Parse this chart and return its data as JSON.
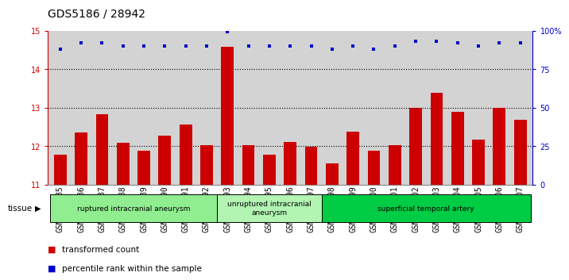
{
  "title": "GDS5186 / 28942",
  "samples": [
    "GSM1306885",
    "GSM1306886",
    "GSM1306887",
    "GSM1306888",
    "GSM1306889",
    "GSM1306890",
    "GSM1306891",
    "GSM1306892",
    "GSM1306893",
    "GSM1306894",
    "GSM1306895",
    "GSM1306896",
    "GSM1306897",
    "GSM1306898",
    "GSM1306899",
    "GSM1306900",
    "GSM1306901",
    "GSM1306902",
    "GSM1306903",
    "GSM1306904",
    "GSM1306905",
    "GSM1306906",
    "GSM1306907"
  ],
  "bar_values": [
    11.78,
    12.35,
    12.82,
    12.08,
    11.88,
    12.27,
    12.57,
    12.02,
    14.57,
    12.02,
    11.77,
    12.11,
    11.98,
    11.55,
    12.37,
    11.88,
    12.02,
    13.0,
    13.38,
    12.88,
    12.17,
    13.0,
    12.68
  ],
  "percentile_values": [
    88,
    92,
    92,
    90,
    90,
    90,
    90,
    90,
    99,
    90,
    90,
    90,
    90,
    88,
    90,
    88,
    90,
    93,
    93,
    92,
    90,
    92,
    92
  ],
  "bar_color": "#cc0000",
  "dot_color": "#0000cc",
  "bar_bottom": 11,
  "ylim_left": [
    11,
    15
  ],
  "ylim_right": [
    0,
    100
  ],
  "yticks_left": [
    11,
    12,
    13,
    14,
    15
  ],
  "yticks_right": [
    0,
    25,
    50,
    75,
    100
  ],
  "ytick_labels_right": [
    "0",
    "25",
    "50",
    "75",
    "100%"
  ],
  "grid_ticks": [
    12,
    13,
    14
  ],
  "tissue_groups": [
    {
      "label": "ruptured intracranial aneurysm",
      "start": 0,
      "end": 8,
      "color": "#90EE90"
    },
    {
      "label": "unruptured intracranial\naneurysm",
      "start": 8,
      "end": 13,
      "color": "#b2f4b2"
    },
    {
      "label": "superficial temporal artery",
      "start": 13,
      "end": 23,
      "color": "#00cc44"
    }
  ],
  "legend_items": [
    {
      "label": "transformed count",
      "color": "#cc0000"
    },
    {
      "label": "percentile rank within the sample",
      "color": "#0000cc"
    }
  ],
  "plot_bg_color": "#d3d3d3",
  "tissue_label": "tissue",
  "title_fontsize": 10,
  "tick_fontsize": 7,
  "label_fontsize": 8
}
